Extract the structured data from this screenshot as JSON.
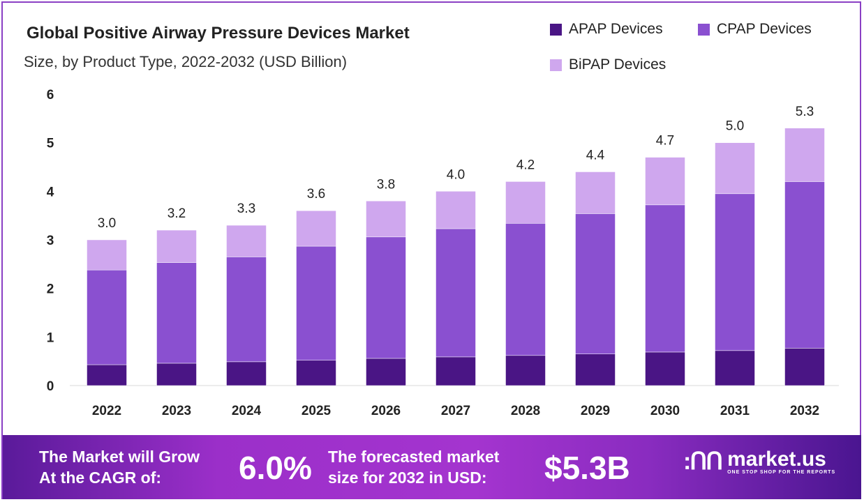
{
  "chart_data": {
    "type": "bar",
    "stacked": true,
    "title": "Global Positive Airway Pressure Devices Market",
    "subtitle": "Size, by Product Type, 2022-2032 (USD Billion)",
    "xlabel": "",
    "ylabel": "",
    "ylim": [
      0,
      6
    ],
    "yticks": [
      "0",
      "1",
      "2",
      "3",
      "4",
      "5",
      "6"
    ],
    "legend_position": "top-right",
    "categories": [
      "2022",
      "2023",
      "2024",
      "2025",
      "2026",
      "2027",
      "2028",
      "2029",
      "2030",
      "2031",
      "2032"
    ],
    "series": [
      {
        "name": "APAP Devices",
        "color": "#4a1585",
        "values": [
          0.43,
          0.46,
          0.49,
          0.52,
          0.56,
          0.59,
          0.62,
          0.65,
          0.69,
          0.72,
          0.77
        ]
      },
      {
        "name": "CPAP Devices",
        "color": "#8a50d0",
        "values": [
          1.95,
          2.07,
          2.16,
          2.35,
          2.5,
          2.64,
          2.72,
          2.89,
          3.03,
          3.23,
          3.43
        ]
      },
      {
        "name": "BiPAP Devices",
        "color": "#cfa7ee",
        "values": [
          0.62,
          0.67,
          0.65,
          0.73,
          0.74,
          0.77,
          0.86,
          0.86,
          0.98,
          1.05,
          1.1
        ]
      }
    ],
    "totals": [
      "3.0",
      "3.2",
      "3.3",
      "3.6",
      "3.8",
      "4.0",
      "4.2",
      "4.4",
      "4.7",
      "5.0",
      "5.3"
    ]
  },
  "banner": {
    "cagr_label_line1": "The Market will Grow",
    "cagr_label_line2": "At the CAGR of:",
    "cagr_value": "6.0%",
    "forecast_label_line1": "The forecasted market",
    "forecast_label_line2": "size for 2032 in USD:",
    "forecast_value": "$5.3B",
    "logo_name": "market.us",
    "logo_tagline": "ONE STOP SHOP FOR THE REPORTS"
  }
}
